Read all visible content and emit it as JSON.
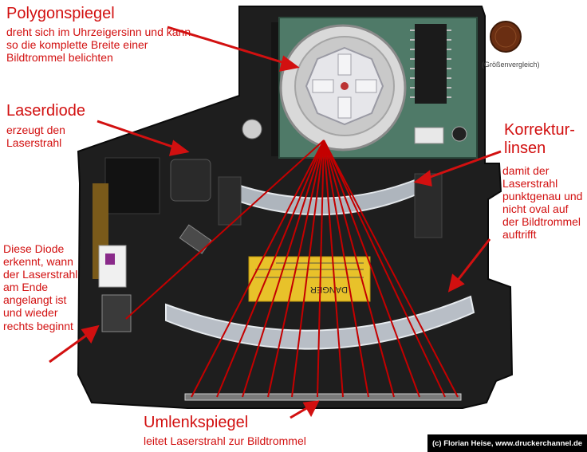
{
  "labels": {
    "polygon_title": "Polygonspiegel",
    "polygon_desc": "dreht sich im Uhrzeigersinn und kann so die komplette Breite einer Bildtrommel belichten",
    "laser_title": "Laserdiode",
    "laser_desc": "erzeugt den Laserstrahl",
    "diode_desc": "Diese Diode erkennt, wann der Laserstrahl am Ende angelangt ist und wieder rechts beginnt",
    "korrektur_title": "Korrektur-linsen",
    "korrektur_desc": "damit der Laserstrahl punktgenau und nicht oval auf der Bildtrommel auftrifft",
    "umlenk_title": "Umlenkspiegel",
    "umlenk_desc": "leitet Laserstrahl zur Bildtrommel",
    "coin_caption": "(Größenvergleich)",
    "copyright": "(c) Florian Heise, www.druckerchannel.de",
    "warning_sticker": "DANGER"
  },
  "colors": {
    "annotation_red": "#d21010",
    "beam_red": "#c40000",
    "chassis": "#1e1e1e",
    "pcb": "#4f7a68",
    "warning_yellow": "#e8c22a"
  }
}
